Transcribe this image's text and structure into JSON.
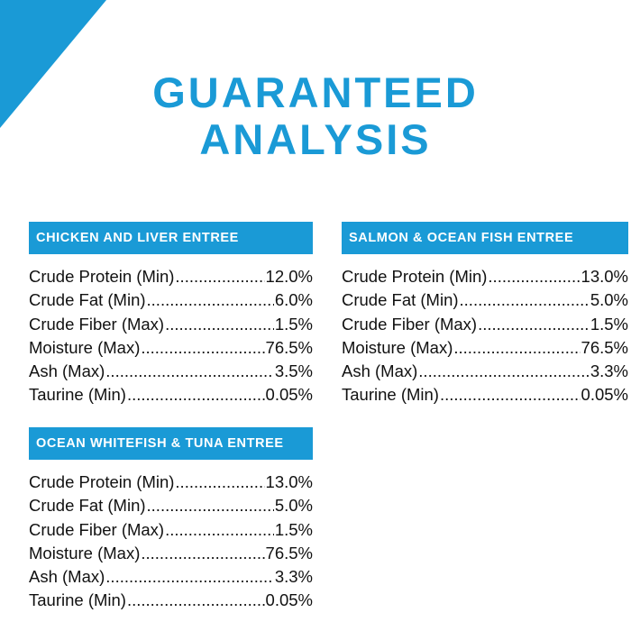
{
  "title": {
    "line1": "GUARANTEED",
    "line2": "ANALYSIS"
  },
  "accent_color": "#1a9ad6",
  "panels": {
    "chicken": {
      "header": "CHICKEN AND LIVER ENTREE",
      "rows": [
        {
          "label": "Crude Protein (Min)",
          "value": "12.0%"
        },
        {
          "label": "Crude Fat (Min)",
          "value": "6.0%"
        },
        {
          "label": "Crude Fiber (Max)",
          "value": "1.5%"
        },
        {
          "label": "Moisture (Max)",
          "value": "76.5%"
        },
        {
          "label": "Ash (Max)",
          "value": "3.5%"
        },
        {
          "label": "Taurine (Min)",
          "value": "0.05%"
        }
      ]
    },
    "salmon": {
      "header": "SALMON & OCEAN FISH ENTREE",
      "rows": [
        {
          "label": "Crude Protein (Min)",
          "value": "13.0%"
        },
        {
          "label": "Crude Fat (Min)",
          "value": "5.0%"
        },
        {
          "label": "Crude Fiber (Max)",
          "value": "1.5%"
        },
        {
          "label": "Moisture (Max)",
          "value": "76.5%"
        },
        {
          "label": "Ash (Max)",
          "value": "3.3%"
        },
        {
          "label": "Taurine (Min)",
          "value": "0.05%"
        }
      ]
    },
    "whitefish": {
      "header": "OCEAN WHITEFISH & TUNA ENTREE",
      "rows": [
        {
          "label": "Crude Protein (Min)",
          "value": "13.0%"
        },
        {
          "label": "Crude Fat (Min)",
          "value": "5.0%"
        },
        {
          "label": "Crude Fiber (Max)",
          "value": "1.5%"
        },
        {
          "label": "Moisture (Max)",
          "value": "76.5%"
        },
        {
          "label": "Ash (Max)",
          "value": "3.3%"
        },
        {
          "label": "Taurine (Min)",
          "value": "0.05%"
        }
      ]
    }
  }
}
